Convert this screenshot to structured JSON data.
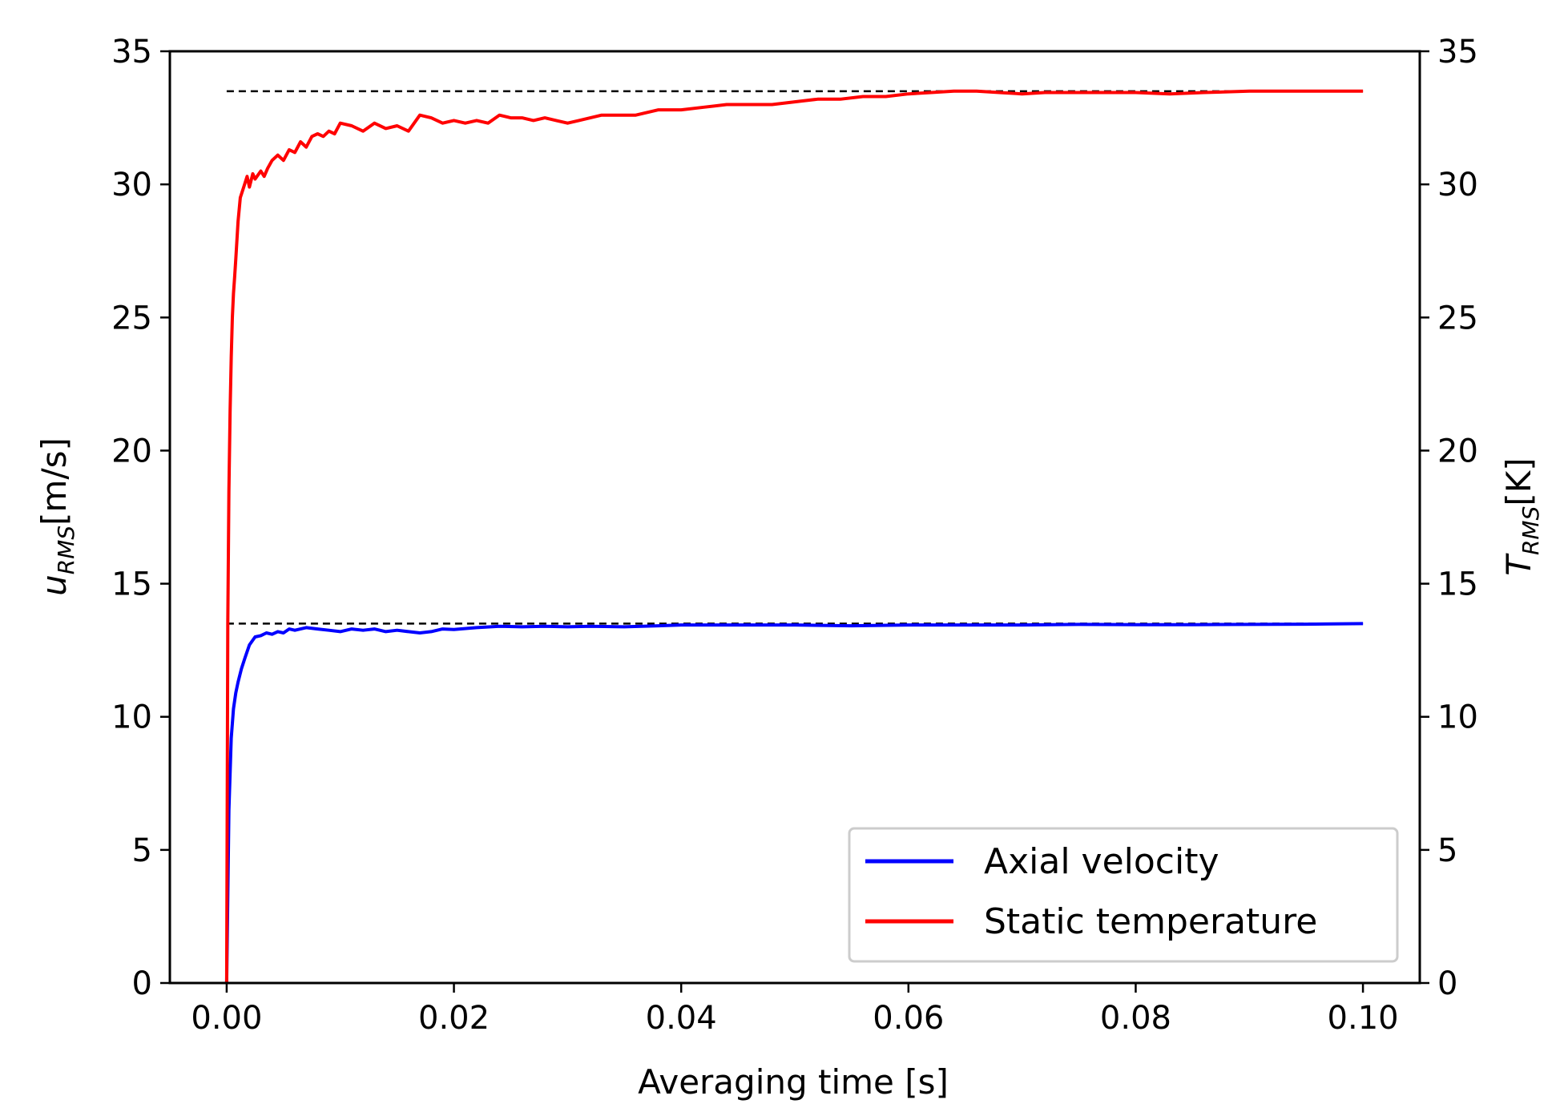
{
  "chart_data": {
    "type": "line",
    "title": "",
    "xlabel": "Averaging time [s]",
    "ylabel_left": {
      "main": "u",
      "sub": "RMS",
      "unit": "[m/s]"
    },
    "ylabel_right": {
      "main": "T",
      "sub": "RMS",
      "unit": "[K]"
    },
    "xlim": [
      -0.005,
      0.105
    ],
    "ylim_left": [
      0,
      35
    ],
    "ylim_right": [
      0,
      35
    ],
    "x_ticks": [
      0.0,
      0.02,
      0.04,
      0.06,
      0.08,
      0.1
    ],
    "x_tick_labels": [
      "0.00",
      "0.02",
      "0.04",
      "0.06",
      "0.08",
      "0.10"
    ],
    "y_ticks": [
      0,
      5,
      10,
      15,
      20,
      25,
      30,
      35
    ],
    "y_tick_labels": [
      "0",
      "5",
      "10",
      "15",
      "20",
      "25",
      "30",
      "35"
    ],
    "grid": false,
    "legend_position": "lower-right",
    "series": [
      {
        "name": "Axial velocity",
        "color": "#0000ff",
        "x": [
          0.0,
          0.0002,
          0.0004,
          0.0006,
          0.0008,
          0.001,
          0.0013,
          0.0016,
          0.002,
          0.0025,
          0.003,
          0.0035,
          0.004,
          0.0045,
          0.005,
          0.0055,
          0.006,
          0.007,
          0.008,
          0.009,
          0.01,
          0.011,
          0.012,
          0.013,
          0.014,
          0.015,
          0.016,
          0.017,
          0.018,
          0.019,
          0.02,
          0.022,
          0.024,
          0.026,
          0.028,
          0.03,
          0.032,
          0.035,
          0.038,
          0.04,
          0.045,
          0.05,
          0.055,
          0.06,
          0.065,
          0.07,
          0.075,
          0.08,
          0.085,
          0.09,
          0.095,
          0.1
        ],
        "y": [
          0.0,
          6.5,
          9.2,
          10.3,
          10.9,
          11.3,
          11.8,
          12.2,
          12.7,
          13.0,
          13.05,
          13.15,
          13.1,
          13.2,
          13.15,
          13.3,
          13.25,
          13.35,
          13.3,
          13.25,
          13.2,
          13.3,
          13.25,
          13.3,
          13.2,
          13.25,
          13.2,
          13.15,
          13.2,
          13.3,
          13.28,
          13.35,
          13.4,
          13.38,
          13.4,
          13.38,
          13.4,
          13.38,
          13.42,
          13.45,
          13.45,
          13.45,
          13.42,
          13.45,
          13.45,
          13.45,
          13.47,
          13.46,
          13.46,
          13.47,
          13.48,
          13.5
        ]
      },
      {
        "name": "Static temperature",
        "color": "#ff0000",
        "x": [
          0.0,
          0.0001,
          0.0002,
          0.0003,
          0.0004,
          0.0005,
          0.0006,
          0.0007,
          0.0008,
          0.001,
          0.0012,
          0.0015,
          0.0018,
          0.002,
          0.0023,
          0.0025,
          0.003,
          0.0033,
          0.0036,
          0.004,
          0.0045,
          0.005,
          0.0055,
          0.006,
          0.0065,
          0.007,
          0.0075,
          0.008,
          0.0085,
          0.009,
          0.0095,
          0.01,
          0.011,
          0.012,
          0.013,
          0.014,
          0.015,
          0.016,
          0.017,
          0.018,
          0.019,
          0.02,
          0.021,
          0.022,
          0.023,
          0.024,
          0.025,
          0.026,
          0.027,
          0.028,
          0.029,
          0.03,
          0.031,
          0.032,
          0.033,
          0.034,
          0.036,
          0.038,
          0.04,
          0.042,
          0.044,
          0.046,
          0.048,
          0.05,
          0.052,
          0.054,
          0.056,
          0.058,
          0.06,
          0.062,
          0.064,
          0.066,
          0.068,
          0.07,
          0.072,
          0.075,
          0.078,
          0.08,
          0.083,
          0.086,
          0.09,
          0.093,
          0.096,
          0.1
        ],
        "y": [
          0.0,
          13.5,
          18.5,
          21.5,
          23.5,
          25.0,
          25.9,
          26.5,
          27.2,
          28.6,
          29.5,
          29.9,
          30.3,
          29.9,
          30.4,
          30.2,
          30.5,
          30.3,
          30.6,
          30.9,
          31.1,
          30.9,
          31.3,
          31.2,
          31.6,
          31.4,
          31.8,
          31.9,
          31.8,
          32.0,
          31.9,
          32.3,
          32.2,
          32.0,
          32.3,
          32.1,
          32.2,
          32.0,
          32.6,
          32.5,
          32.3,
          32.4,
          32.3,
          32.4,
          32.3,
          32.6,
          32.5,
          32.5,
          32.4,
          32.5,
          32.4,
          32.3,
          32.4,
          32.5,
          32.6,
          32.6,
          32.6,
          32.8,
          32.8,
          32.9,
          33.0,
          33.0,
          33.0,
          33.1,
          33.2,
          33.2,
          33.3,
          33.3,
          33.4,
          33.45,
          33.5,
          33.5,
          33.45,
          33.4,
          33.45,
          33.45,
          33.45,
          33.45,
          33.4,
          33.45,
          33.5,
          33.5,
          33.5,
          33.5
        ]
      }
    ],
    "reference_lines": [
      {
        "y": 13.5,
        "x_start": 0.0,
        "x_end": 0.1,
        "style": "dashed",
        "color": "#000000"
      },
      {
        "y": 33.5,
        "x_start": 0.0,
        "x_end": 0.1,
        "style": "dashed",
        "color": "#000000"
      }
    ]
  }
}
